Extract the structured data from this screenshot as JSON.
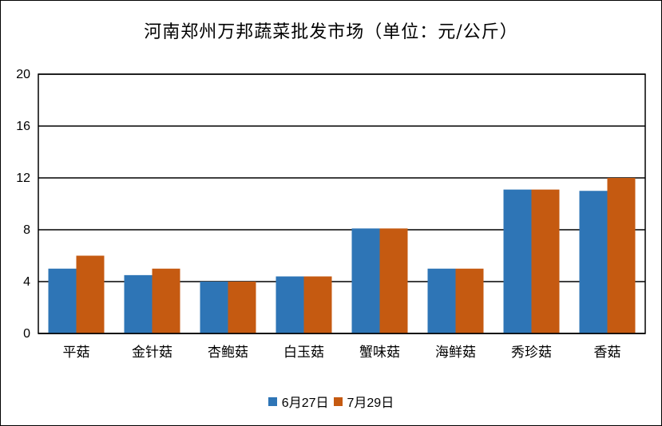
{
  "chart_data": {
    "type": "bar",
    "title": "河南郑州万邦蔬菜批发市场（单位：元/公斤）",
    "categories": [
      "平菇",
      "金针菇",
      "杏鲍菇",
      "白玉菇",
      "蟹味菇",
      "海鲜菇",
      "秀珍菇",
      "香菇"
    ],
    "series": [
      {
        "name": "6月27日",
        "values": [
          5,
          4.5,
          4,
          4.4,
          8.1,
          5,
          11.1,
          11
        ],
        "color": "#2E75B6"
      },
      {
        "name": "7月29日",
        "values": [
          6,
          5,
          4,
          4.4,
          8.1,
          5,
          11.1,
          12
        ],
        "color": "#C55A11"
      }
    ],
    "ylim": [
      0,
      20
    ],
    "yticks": [
      0,
      4,
      8,
      12,
      16,
      20
    ],
    "grid": true,
    "legend_position": "bottom"
  }
}
